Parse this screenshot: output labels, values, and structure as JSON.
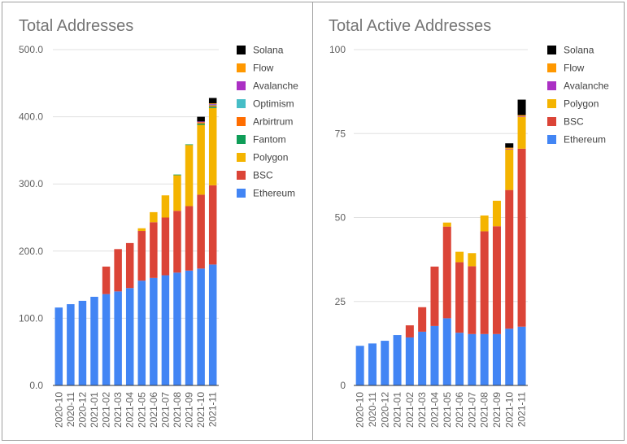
{
  "colors": {
    "Ethereum": "#4285f4",
    "BSC": "#db4437",
    "Polygon": "#f4b400",
    "Fantom": "#0f9d58",
    "Arbirtrum": "#ff6d00",
    "Optimism": "#46bdc6",
    "Avalanche": "#ab30c4",
    "Flow": "#ff9800",
    "Solana": "#000000",
    "gridline": "#e0e0e0",
    "baseline": "#333333"
  },
  "chart_data": [
    {
      "type": "stacked-bar",
      "title": "Total Addresses",
      "ylim": [
        0,
        500
      ],
      "yticks": [
        "0.0",
        "100.0",
        "200.0",
        "300.0",
        "400.0",
        "500.0"
      ],
      "categories": [
        "2020-10",
        "2020-11",
        "2020-12",
        "2021-01",
        "2021-02",
        "2021-03",
        "2021-04",
        "2021-05",
        "2021-06",
        "2021-07",
        "2021-08",
        "2021-09",
        "2021-10",
        "2021-11"
      ],
      "legend": [
        "Solana",
        "Flow",
        "Avalanche",
        "Optimism",
        "Arbirtrum",
        "Fantom",
        "Polygon",
        "BSC",
        "Ethereum"
      ],
      "series": [
        {
          "name": "Ethereum",
          "values": [
            116,
            121,
            126,
            132,
            136,
            140,
            145,
            156,
            160,
            164,
            168,
            171,
            174,
            180
          ]
        },
        {
          "name": "BSC",
          "values": [
            0,
            0,
            0,
            0,
            41,
            63,
            67,
            74,
            83,
            86,
            92,
            96,
            110,
            118
          ]
        },
        {
          "name": "Polygon",
          "values": [
            0,
            0,
            0,
            0,
            0,
            0,
            0,
            4,
            15,
            33,
            53,
            91,
            104,
            115
          ]
        },
        {
          "name": "Fantom",
          "values": [
            0,
            0,
            0,
            0,
            0,
            0,
            0,
            0,
            0,
            0,
            1,
            1,
            2,
            2
          ]
        },
        {
          "name": "Arbirtrum",
          "values": [
            0,
            0,
            0,
            0,
            0,
            0,
            0,
            0,
            0,
            0,
            0,
            0,
            2,
            2
          ]
        },
        {
          "name": "Optimism",
          "values": [
            0,
            0,
            0,
            0,
            0,
            0,
            0,
            0,
            0,
            0,
            0,
            0,
            0,
            1
          ]
        },
        {
          "name": "Avalanche",
          "values": [
            0,
            0,
            0,
            0,
            0,
            0,
            0,
            0,
            0,
            0,
            0,
            0,
            1,
            1
          ]
        },
        {
          "name": "Flow",
          "values": [
            0,
            0,
            0,
            0,
            0,
            0,
            0,
            0,
            0,
            0,
            0,
            0,
            0,
            1
          ]
        },
        {
          "name": "Solana",
          "values": [
            0,
            0,
            0,
            0,
            0,
            0,
            0,
            0,
            0,
            0,
            0,
            0,
            7,
            8
          ]
        }
      ]
    },
    {
      "type": "stacked-bar",
      "title": "Total Active Addresses",
      "ylim": [
        0,
        100
      ],
      "yticks": [
        "0",
        "25",
        "50",
        "75",
        "100"
      ],
      "categories": [
        "2020-10",
        "2020-11",
        "2020-12",
        "2021-01",
        "2021-02",
        "2021-03",
        "2021-04",
        "2021-05",
        "2021-06",
        "2021-07",
        "2021-08",
        "2021-09",
        "2021-10",
        "2021-11"
      ],
      "legend": [
        "Solana",
        "Flow",
        "Avalanche",
        "Polygon",
        "BSC",
        "Ethereum"
      ],
      "series": [
        {
          "name": "Ethereum",
          "values": [
            11.8,
            12.5,
            13.3,
            15,
            14.3,
            16,
            17.7,
            20,
            15.7,
            15.3,
            15.3,
            15.3,
            16.9,
            17.5
          ]
        },
        {
          "name": "BSC",
          "values": [
            0,
            0,
            0,
            0,
            3.6,
            7.3,
            17.7,
            27.3,
            21,
            20.2,
            30.6,
            32.1,
            41.3,
            53
          ]
        },
        {
          "name": "Polygon",
          "values": [
            0,
            0,
            0,
            0,
            0,
            0,
            0,
            1.2,
            3.1,
            3.9,
            4.7,
            7.6,
            12.1,
            9.5
          ]
        },
        {
          "name": "Avalanche",
          "values": [
            0,
            0,
            0,
            0,
            0,
            0,
            0,
            0,
            0,
            0,
            0,
            0,
            0.2,
            0.2
          ]
        },
        {
          "name": "Flow",
          "values": [
            0,
            0,
            0,
            0,
            0,
            0,
            0,
            0,
            0,
            0,
            0,
            0,
            0.3,
            0.3
          ]
        },
        {
          "name": "Solana",
          "values": [
            0,
            0,
            0,
            0,
            0,
            0,
            0,
            0,
            0,
            0,
            0,
            0,
            1.3,
            4.6
          ]
        }
      ]
    }
  ]
}
